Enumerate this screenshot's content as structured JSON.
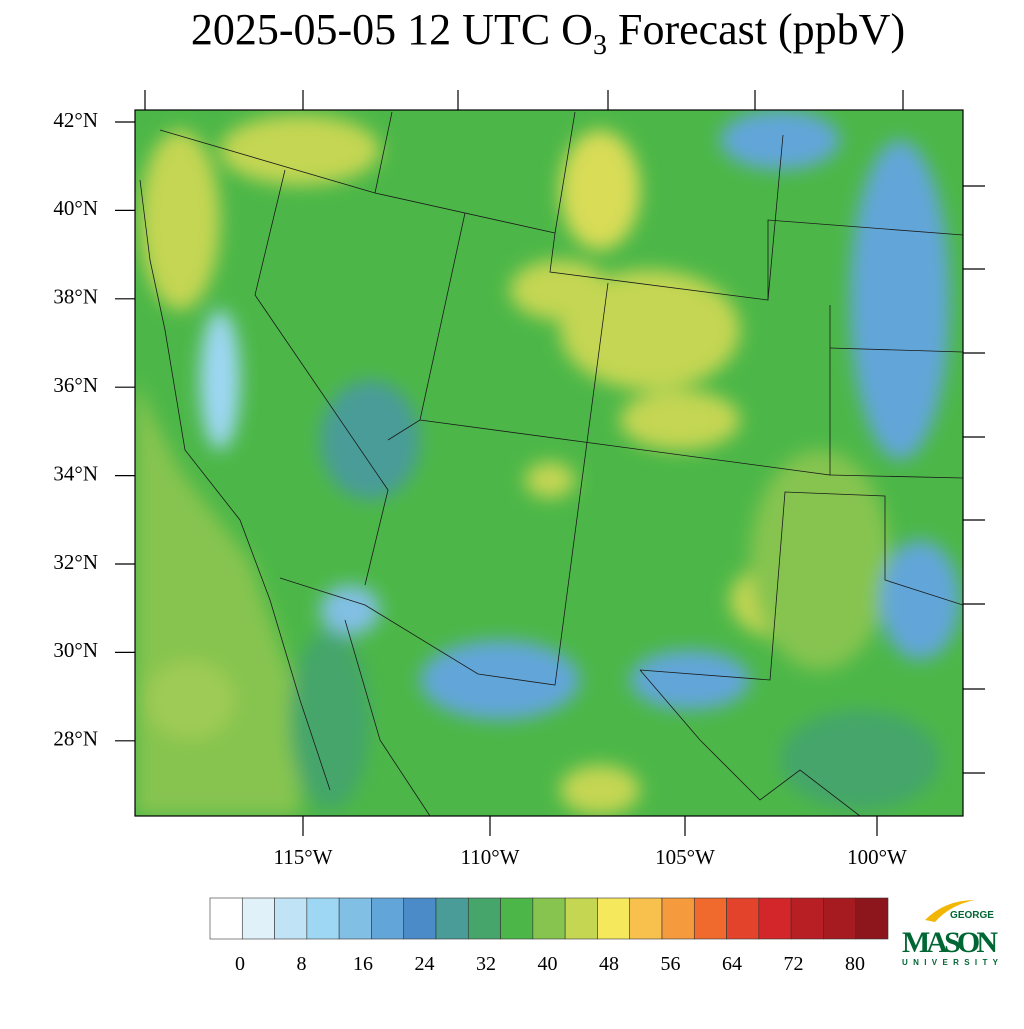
{
  "title": {
    "main": "2025-05-05 12 UTC O",
    "subscript": "3",
    "rest": " Forecast (ppbV)"
  },
  "lat_labels": [
    "42°N",
    "40°N",
    "38°N",
    "36°N",
    "34°N",
    "32°N",
    "30°N",
    "28°N"
  ],
  "lon_labels": [
    "115°W",
    "110°W",
    "105°W",
    "100°W"
  ],
  "colorbar": {
    "colors": [
      "#ffffff",
      "#e0f1fa",
      "#c0e4f6",
      "#9dd7f3",
      "#82bfe4",
      "#62a6d9",
      "#4a8bc8",
      "#4a9c98",
      "#45a56a",
      "#4cb748",
      "#86c44f",
      "#c4d652",
      "#f6e85c",
      "#f8c04d",
      "#f59a3d",
      "#f06a2e",
      "#e3432b",
      "#d3262a",
      "#b81f24",
      "#a51b20",
      "#8c161b"
    ],
    "labels": [
      0,
      8,
      16,
      24,
      32,
      40,
      48,
      56,
      64,
      72,
      80
    ]
  },
  "logo": {
    "top": "GEORGE",
    "main": "MASON",
    "bottom": "UNIVERSITY"
  }
}
